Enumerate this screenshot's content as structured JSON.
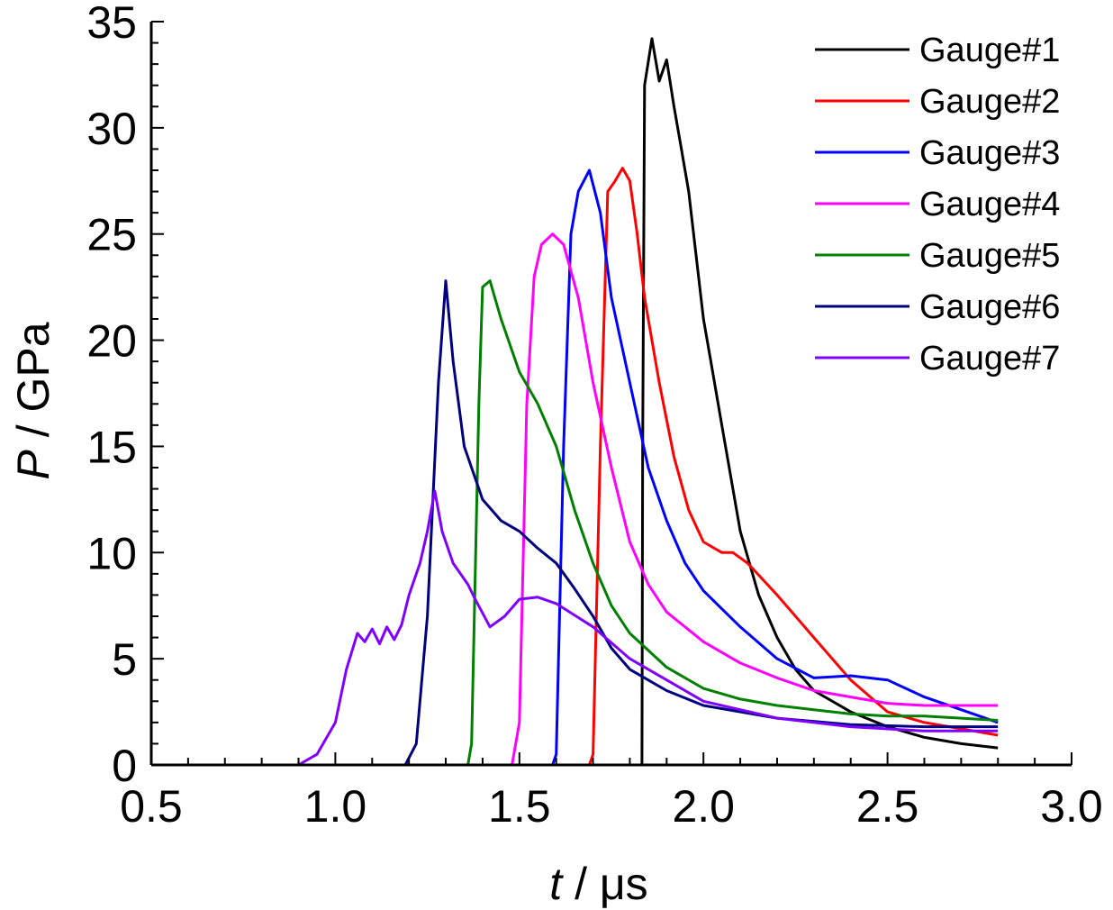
{
  "chart_data": {
    "type": "line",
    "xlabel_var": "t",
    "xlabel_unit": " / μs",
    "ylabel_var": "P",
    "ylabel_unit": " / GPa",
    "xlim": [
      0.5,
      3.0
    ],
    "ylim": [
      0,
      35
    ],
    "x_ticks": [
      "0.5",
      "1.0",
      "1.5",
      "2.0",
      "2.5",
      "3.0"
    ],
    "y_ticks": [
      "0",
      "5",
      "10",
      "15",
      "20",
      "25",
      "30",
      "35"
    ],
    "grid": false,
    "legend_position": "top-right",
    "series": [
      {
        "name": "Gauge#1",
        "color": "#000000",
        "points": [
          [
            0.5,
            0
          ],
          [
            1.83,
            0
          ],
          [
            1.833,
            0
          ],
          [
            1.835,
            15
          ],
          [
            1.84,
            32
          ],
          [
            1.86,
            34.2
          ],
          [
            1.88,
            32.2
          ],
          [
            1.9,
            33.2
          ],
          [
            1.92,
            31
          ],
          [
            1.94,
            29
          ],
          [
            1.96,
            27
          ],
          [
            1.98,
            24
          ],
          [
            2.0,
            21
          ],
          [
            2.02,
            19
          ],
          [
            2.05,
            16
          ],
          [
            2.08,
            13
          ],
          [
            2.1,
            11
          ],
          [
            2.15,
            8
          ],
          [
            2.2,
            6
          ],
          [
            2.25,
            4.5
          ],
          [
            2.3,
            3.5
          ],
          [
            2.4,
            2.5
          ],
          [
            2.5,
            1.8
          ],
          [
            2.6,
            1.3
          ],
          [
            2.7,
            1.0
          ],
          [
            2.8,
            0.8
          ]
        ]
      },
      {
        "name": "Gauge#2",
        "color": "#ff0000",
        "points": [
          [
            0.5,
            0
          ],
          [
            1.69,
            0
          ],
          [
            1.7,
            0.5
          ],
          [
            1.72,
            15
          ],
          [
            1.74,
            27
          ],
          [
            1.76,
            27.5
          ],
          [
            1.78,
            28.1
          ],
          [
            1.8,
            27.5
          ],
          [
            1.82,
            25
          ],
          [
            1.84,
            22
          ],
          [
            1.88,
            18
          ],
          [
            1.92,
            14.5
          ],
          [
            1.96,
            12
          ],
          [
            2.0,
            10.5
          ],
          [
            2.05,
            10
          ],
          [
            2.08,
            10
          ],
          [
            2.12,
            9.5
          ],
          [
            2.2,
            8
          ],
          [
            2.3,
            6
          ],
          [
            2.4,
            4
          ],
          [
            2.5,
            2.5
          ],
          [
            2.6,
            2
          ],
          [
            2.7,
            1.7
          ],
          [
            2.8,
            1.4
          ]
        ]
      },
      {
        "name": "Gauge#3",
        "color": "#0000ff",
        "points": [
          [
            0.5,
            0
          ],
          [
            1.59,
            0
          ],
          [
            1.6,
            0.5
          ],
          [
            1.62,
            15
          ],
          [
            1.64,
            25
          ],
          [
            1.66,
            27
          ],
          [
            1.69,
            28
          ],
          [
            1.72,
            26
          ],
          [
            1.75,
            22
          ],
          [
            1.8,
            18
          ],
          [
            1.85,
            14
          ],
          [
            1.9,
            11.5
          ],
          [
            1.95,
            9.5
          ],
          [
            2.0,
            8.2
          ],
          [
            2.1,
            6.5
          ],
          [
            2.2,
            5
          ],
          [
            2.3,
            4.1
          ],
          [
            2.4,
            4.2
          ],
          [
            2.5,
            4
          ],
          [
            2.6,
            3.2
          ],
          [
            2.7,
            2.6
          ],
          [
            2.8,
            2.0
          ]
        ]
      },
      {
        "name": "Gauge#4",
        "color": "#ff00ff",
        "points": [
          [
            0.5,
            0
          ],
          [
            1.48,
            0
          ],
          [
            1.5,
            2
          ],
          [
            1.52,
            17
          ],
          [
            1.54,
            23
          ],
          [
            1.56,
            24.5
          ],
          [
            1.59,
            25
          ],
          [
            1.62,
            24.5
          ],
          [
            1.66,
            22
          ],
          [
            1.7,
            18
          ],
          [
            1.75,
            14
          ],
          [
            1.8,
            10.5
          ],
          [
            1.85,
            8.5
          ],
          [
            1.9,
            7.2
          ],
          [
            2.0,
            5.8
          ],
          [
            2.1,
            4.8
          ],
          [
            2.2,
            4.1
          ],
          [
            2.3,
            3.5
          ],
          [
            2.4,
            3.2
          ],
          [
            2.5,
            2.9
          ],
          [
            2.6,
            2.8
          ],
          [
            2.7,
            2.8
          ],
          [
            2.8,
            2.8
          ]
        ]
      },
      {
        "name": "Gauge#5",
        "color": "#008000",
        "points": [
          [
            0.5,
            0
          ],
          [
            1.36,
            0
          ],
          [
            1.37,
            1
          ],
          [
            1.39,
            17
          ],
          [
            1.4,
            22.5
          ],
          [
            1.42,
            22.8
          ],
          [
            1.45,
            21
          ],
          [
            1.5,
            18.5
          ],
          [
            1.55,
            17
          ],
          [
            1.6,
            15
          ],
          [
            1.65,
            12
          ],
          [
            1.7,
            9.5
          ],
          [
            1.75,
            7.5
          ],
          [
            1.8,
            6.2
          ],
          [
            1.9,
            4.6
          ],
          [
            2.0,
            3.6
          ],
          [
            2.1,
            3.1
          ],
          [
            2.2,
            2.8
          ],
          [
            2.3,
            2.6
          ],
          [
            2.4,
            2.4
          ],
          [
            2.5,
            2.3
          ],
          [
            2.6,
            2.3
          ],
          [
            2.7,
            2.2
          ],
          [
            2.8,
            2.1
          ]
        ]
      },
      {
        "name": "Gauge#6",
        "color": "#000080",
        "points": [
          [
            0.5,
            0
          ],
          [
            1.19,
            0
          ],
          [
            1.22,
            1
          ],
          [
            1.25,
            7
          ],
          [
            1.28,
            18
          ],
          [
            1.3,
            22.8
          ],
          [
            1.32,
            19
          ],
          [
            1.35,
            15
          ],
          [
            1.4,
            12.5
          ],
          [
            1.45,
            11.5
          ],
          [
            1.5,
            11
          ],
          [
            1.55,
            10.2
          ],
          [
            1.6,
            9.5
          ],
          [
            1.65,
            8.3
          ],
          [
            1.7,
            7
          ],
          [
            1.75,
            5.5
          ],
          [
            1.8,
            4.5
          ],
          [
            1.9,
            3.5
          ],
          [
            2.0,
            2.8
          ],
          [
            2.2,
            2.2
          ],
          [
            2.4,
            1.9
          ],
          [
            2.6,
            1.8
          ],
          [
            2.8,
            1.8
          ]
        ]
      },
      {
        "name": "Gauge#7",
        "color": "#8000ff",
        "points": [
          [
            0.5,
            0
          ],
          [
            0.9,
            0
          ],
          [
            0.95,
            0.5
          ],
          [
            1.0,
            2
          ],
          [
            1.03,
            4.5
          ],
          [
            1.06,
            6.2
          ],
          [
            1.08,
            5.8
          ],
          [
            1.1,
            6.4
          ],
          [
            1.12,
            5.7
          ],
          [
            1.14,
            6.5
          ],
          [
            1.16,
            5.9
          ],
          [
            1.18,
            6.6
          ],
          [
            1.2,
            8
          ],
          [
            1.23,
            9.5
          ],
          [
            1.25,
            11
          ],
          [
            1.27,
            12.9
          ],
          [
            1.29,
            11
          ],
          [
            1.32,
            9.5
          ],
          [
            1.36,
            8.5
          ],
          [
            1.38,
            7.8
          ],
          [
            1.42,
            6.5
          ],
          [
            1.46,
            7
          ],
          [
            1.5,
            7.8
          ],
          [
            1.55,
            7.9
          ],
          [
            1.6,
            7.6
          ],
          [
            1.7,
            6.5
          ],
          [
            1.8,
            5
          ],
          [
            1.9,
            4
          ],
          [
            2.0,
            3
          ],
          [
            2.2,
            2.2
          ],
          [
            2.4,
            1.8
          ],
          [
            2.6,
            1.6
          ],
          [
            2.8,
            1.6
          ]
        ]
      }
    ]
  }
}
